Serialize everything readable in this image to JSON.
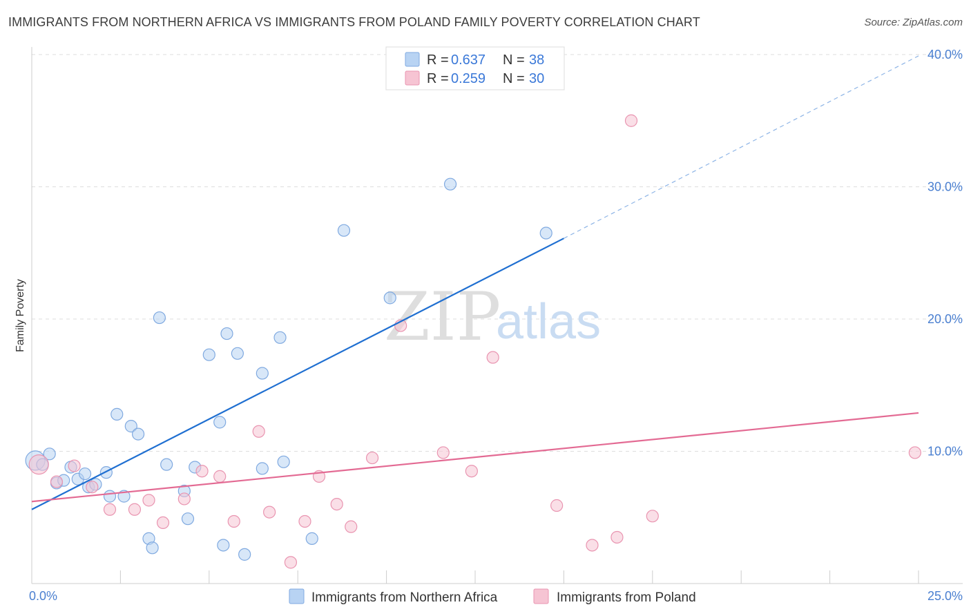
{
  "title": "IMMIGRANTS FROM NORTHERN AFRICA VS IMMIGRANTS FROM POLAND FAMILY POVERTY CORRELATION CHART",
  "source": "Source: ZipAtlas.com",
  "colors": {
    "blue": "#1f6fd1",
    "blue_fill": "#b8d3f3",
    "pink": "#e36a93",
    "pink_fill": "#f6c4d3",
    "tick": "#4a7fd0",
    "grid": "#dddddd"
  },
  "legend": {
    "r_label": "R =",
    "n_label": "N =",
    "series": [
      {
        "r": "0.637",
        "n": "38"
      },
      {
        "r": "0.259",
        "n": "30"
      }
    ]
  },
  "watermark": {
    "zip": "ZIP",
    "atlas": "atlas"
  },
  "chart_data": {
    "type": "scatter",
    "ylabel": "Family Poverty",
    "xlim": [
      0,
      25
    ],
    "ylim": [
      0,
      40
    ],
    "x_ticks": [
      "0.0%",
      "25.0%"
    ],
    "y_ticks": [
      {
        "value": 10,
        "label": "10.0%"
      },
      {
        "value": 20,
        "label": "20.0%"
      },
      {
        "value": 30,
        "label": "30.0%"
      },
      {
        "value": 40,
        "label": "40.0%"
      }
    ],
    "grid": true,
    "legend_position": "top-center",
    "series": [
      {
        "name": "Immigrants from Northern Africa",
        "color": "blue",
        "trend": {
          "x0": 0,
          "y0": 5.6,
          "x1": 15,
          "y1": 26.1,
          "dash_to_x": 25,
          "dash_to_y": 39.9
        },
        "points": [
          [
            0.1,
            9.3
          ],
          [
            0.3,
            9.0
          ],
          [
            0.5,
            9.8
          ],
          [
            0.7,
            7.6
          ],
          [
            0.9,
            7.8
          ],
          [
            1.1,
            8.8
          ],
          [
            1.3,
            7.9
          ],
          [
            1.5,
            8.3
          ],
          [
            1.6,
            7.3
          ],
          [
            1.8,
            7.5
          ],
          [
            2.1,
            8.4
          ],
          [
            2.2,
            6.6
          ],
          [
            2.4,
            12.8
          ],
          [
            2.6,
            6.6
          ],
          [
            2.8,
            11.9
          ],
          [
            3.0,
            11.3
          ],
          [
            3.3,
            3.4
          ],
          [
            3.4,
            2.7
          ],
          [
            3.6,
            20.1
          ],
          [
            3.8,
            9.0
          ],
          [
            4.3,
            7.0
          ],
          [
            4.4,
            4.9
          ],
          [
            4.6,
            8.8
          ],
          [
            5.0,
            17.3
          ],
          [
            5.3,
            12.2
          ],
          [
            5.4,
            2.9
          ],
          [
            5.5,
            18.9
          ],
          [
            5.8,
            17.4
          ],
          [
            6.0,
            2.2
          ],
          [
            6.5,
            8.7
          ],
          [
            6.5,
            15.9
          ],
          [
            7.0,
            18.6
          ],
          [
            7.1,
            9.2
          ],
          [
            7.9,
            3.4
          ],
          [
            8.8,
            26.7
          ],
          [
            10.1,
            21.6
          ],
          [
            11.8,
            30.2
          ],
          [
            14.5,
            26.5
          ]
        ]
      },
      {
        "name": "Immigrants from Poland",
        "color": "pink",
        "trend": {
          "x0": 0,
          "y0": 6.2,
          "x1": 25,
          "y1": 12.9
        },
        "points": [
          [
            0.2,
            9.0
          ],
          [
            0.7,
            7.7
          ],
          [
            1.2,
            8.9
          ],
          [
            1.7,
            7.3
          ],
          [
            2.2,
            5.6
          ],
          [
            2.9,
            5.6
          ],
          [
            3.3,
            6.3
          ],
          [
            3.7,
            4.6
          ],
          [
            4.3,
            6.4
          ],
          [
            4.8,
            8.5
          ],
          [
            5.3,
            8.1
          ],
          [
            5.7,
            4.7
          ],
          [
            6.4,
            11.5
          ],
          [
            6.7,
            5.4
          ],
          [
            7.3,
            1.6
          ],
          [
            7.7,
            4.7
          ],
          [
            8.1,
            8.1
          ],
          [
            8.6,
            6.0
          ],
          [
            9.0,
            4.3
          ],
          [
            9.6,
            9.5
          ],
          [
            10.4,
            19.5
          ],
          [
            11.6,
            9.9
          ],
          [
            12.4,
            8.5
          ],
          [
            13.0,
            17.1
          ],
          [
            14.8,
            5.9
          ],
          [
            15.8,
            2.9
          ],
          [
            16.5,
            3.5
          ],
          [
            16.9,
            35.0
          ],
          [
            17.5,
            5.1
          ],
          [
            24.9,
            9.9
          ]
        ]
      }
    ]
  }
}
